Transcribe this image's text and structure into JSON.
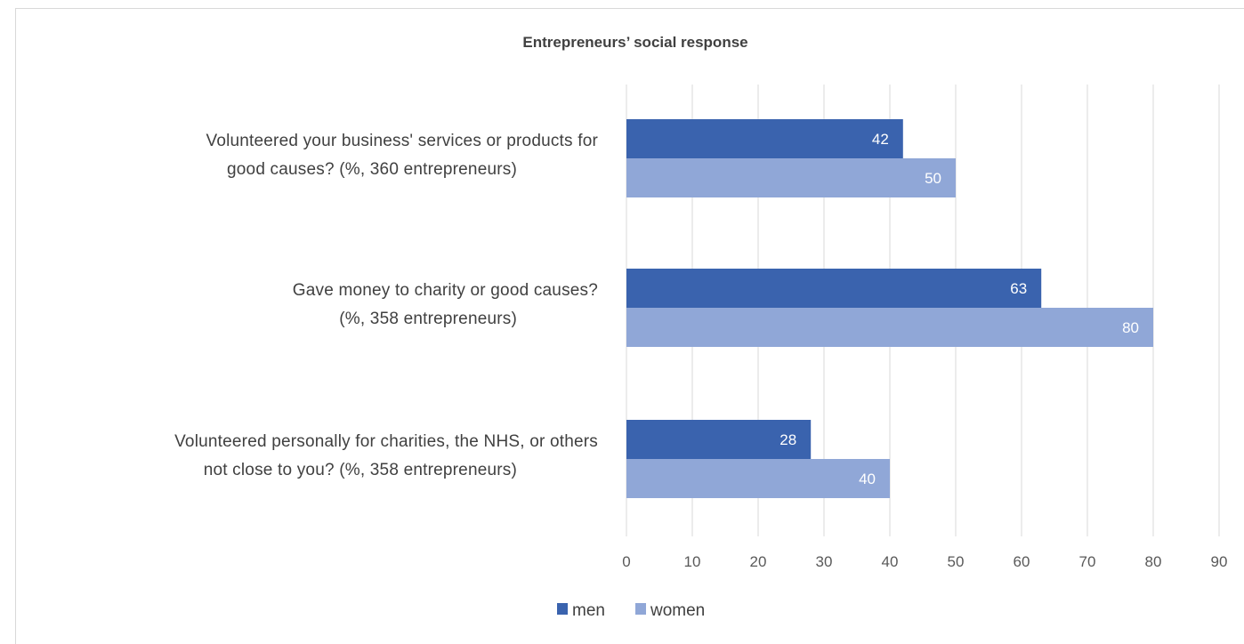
{
  "chart_data": {
    "type": "bar",
    "orientation": "horizontal",
    "title": "Entrepreneurs’ social response",
    "categories": [
      [
        "Volunteered your business' services or products for",
        "good causes? (%, 360 entrepreneurs)"
      ],
      [
        "Gave money to charity or good causes?",
        "(%, 358 entrepreneurs)"
      ],
      [
        "Volunteered personally for charities, the NHS, or others",
        "not close to you? (%, 358 entrepreneurs)"
      ]
    ],
    "series": [
      {
        "name": "men",
        "values": [
          42,
          63,
          28
        ],
        "color": "#3a63ae"
      },
      {
        "name": "women",
        "values": [
          50,
          80,
          40
        ],
        "color": "#90a7d7"
      }
    ],
    "x_ticks": [
      0,
      10,
      20,
      30,
      40,
      50,
      60,
      70,
      80,
      90
    ],
    "xlim": [
      0,
      90
    ],
    "grid": true,
    "legend_position": "bottom",
    "data_labels": true
  }
}
